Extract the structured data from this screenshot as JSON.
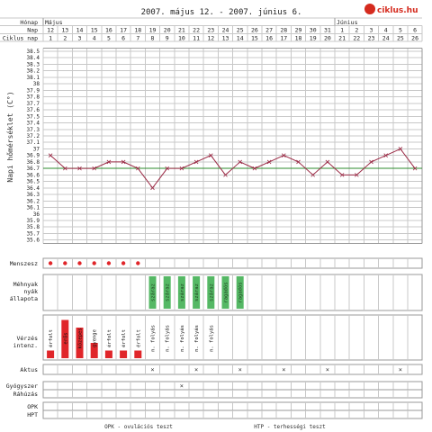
{
  "title": "2007. május 12. - 2007. június 6.",
  "brand": "ciklus.hu",
  "colors": {
    "grid": "#c8c8c8",
    "frame": "#9a9a9a",
    "line": "#9b2a45",
    "coverline": "#2e8b2e",
    "menses": "#e0262a",
    "mucus": "#55b865",
    "brand_red": "#d52b1e",
    "text": "#333333"
  },
  "header": {
    "row_labels": [
      "Hónap",
      "Nap",
      "Ciklus nap"
    ],
    "months": [
      {
        "label": "Május",
        "start_index": 0
      },
      {
        "label": "Június",
        "start_index": 20
      }
    ],
    "days": [
      "12",
      "13",
      "14",
      "15",
      "16",
      "17",
      "18",
      "19",
      "20",
      "21",
      "22",
      "23",
      "24",
      "25",
      "26",
      "27",
      "28",
      "29",
      "30",
      "31",
      "1",
      "2",
      "3",
      "4",
      "5",
      "6"
    ],
    "cycle_days": [
      "1",
      "2",
      "3",
      "4",
      "5",
      "6",
      "7",
      "8",
      "9",
      "10",
      "11",
      "12",
      "13",
      "14",
      "15",
      "16",
      "17",
      "18",
      "19",
      "20",
      "21",
      "22",
      "23",
      "24",
      "25",
      "26"
    ]
  },
  "y_axis_label": "Napi hőmérséklet (C°)",
  "chart_data": {
    "type": "line",
    "ylim": [
      35.6,
      38.5
    ],
    "y_ticks": [
      "38.5",
      "38.4",
      "38.3",
      "38.2",
      "38.1",
      "38",
      "37.9",
      "37.8",
      "37.7",
      "37.6",
      "37.5",
      "37.4",
      "37.3",
      "37.2",
      "37.1",
      "37",
      "36.9",
      "36.8",
      "36.7",
      "36.6",
      "36.5",
      "36.4",
      "36.3",
      "36.2",
      "36.1",
      "36",
      "35.9",
      "35.8",
      "35.7",
      "35.6"
    ],
    "values": [
      36.9,
      36.7,
      36.7,
      36.7,
      36.8,
      36.8,
      36.7,
      36.4,
      36.7,
      36.7,
      36.8,
      36.9,
      36.6,
      36.8,
      36.7,
      36.8,
      36.9,
      36.8,
      36.6,
      36.8,
      36.6,
      36.6,
      36.8,
      36.9,
      37.0,
      36.7
    ],
    "coverline": 36.7
  },
  "sections": {
    "menses_label": "Menszesz",
    "menses_days": [
      0,
      1,
      2,
      3,
      4,
      5,
      6
    ],
    "cervix_label": [
      "Méhnyak",
      "nyák",
      "állapota"
    ],
    "cervix": [
      {
        "day": 7,
        "text": "száraz"
      },
      {
        "day": 8,
        "text": "száraz"
      },
      {
        "day": 9,
        "text": "száraz"
      },
      {
        "day": 10,
        "text": "száraz"
      },
      {
        "day": 11,
        "text": "száraz"
      },
      {
        "day": 12,
        "text": "ragadós"
      },
      {
        "day": 13,
        "text": "ragadós"
      }
    ],
    "bleeding_label": [
      "Vérzés",
      "intenz."
    ],
    "bleeding": [
      {
        "day": 0,
        "text": "érfolt",
        "level": 1
      },
      {
        "day": 1,
        "text": "erős",
        "level": 5
      },
      {
        "day": 2,
        "text": "közepes",
        "level": 4
      },
      {
        "day": 3,
        "text": "gyenge",
        "level": 2
      },
      {
        "day": 4,
        "text": "érfolt",
        "level": 1
      },
      {
        "day": 5,
        "text": "érfolt",
        "level": 1
      },
      {
        "day": 6,
        "text": "érfolt",
        "level": 1
      },
      {
        "day": 7,
        "text": "n. folyás",
        "level": 0
      },
      {
        "day": 8,
        "text": "n. folyás",
        "level": 0
      },
      {
        "day": 9,
        "text": "n. folyás",
        "level": 0
      },
      {
        "day": 10,
        "text": "n. folyás",
        "level": 0
      },
      {
        "day": 11,
        "text": "n. folyás",
        "level": 0
      }
    ],
    "aktus_label": "Aktus",
    "aktus_days": [
      7,
      10,
      13,
      16,
      19,
      24
    ],
    "gyogyszer_label": "Gyógyszer",
    "gyogyszer_days": [
      9
    ],
    "rahuzas_label": "Ráhúzás",
    "opk_label": "OPK",
    "hpt_label": "HPT"
  },
  "footer": {
    "opk_legend": "OPK - ovulációs teszt",
    "hpt_legend": "HTP - terhességi teszt"
  }
}
